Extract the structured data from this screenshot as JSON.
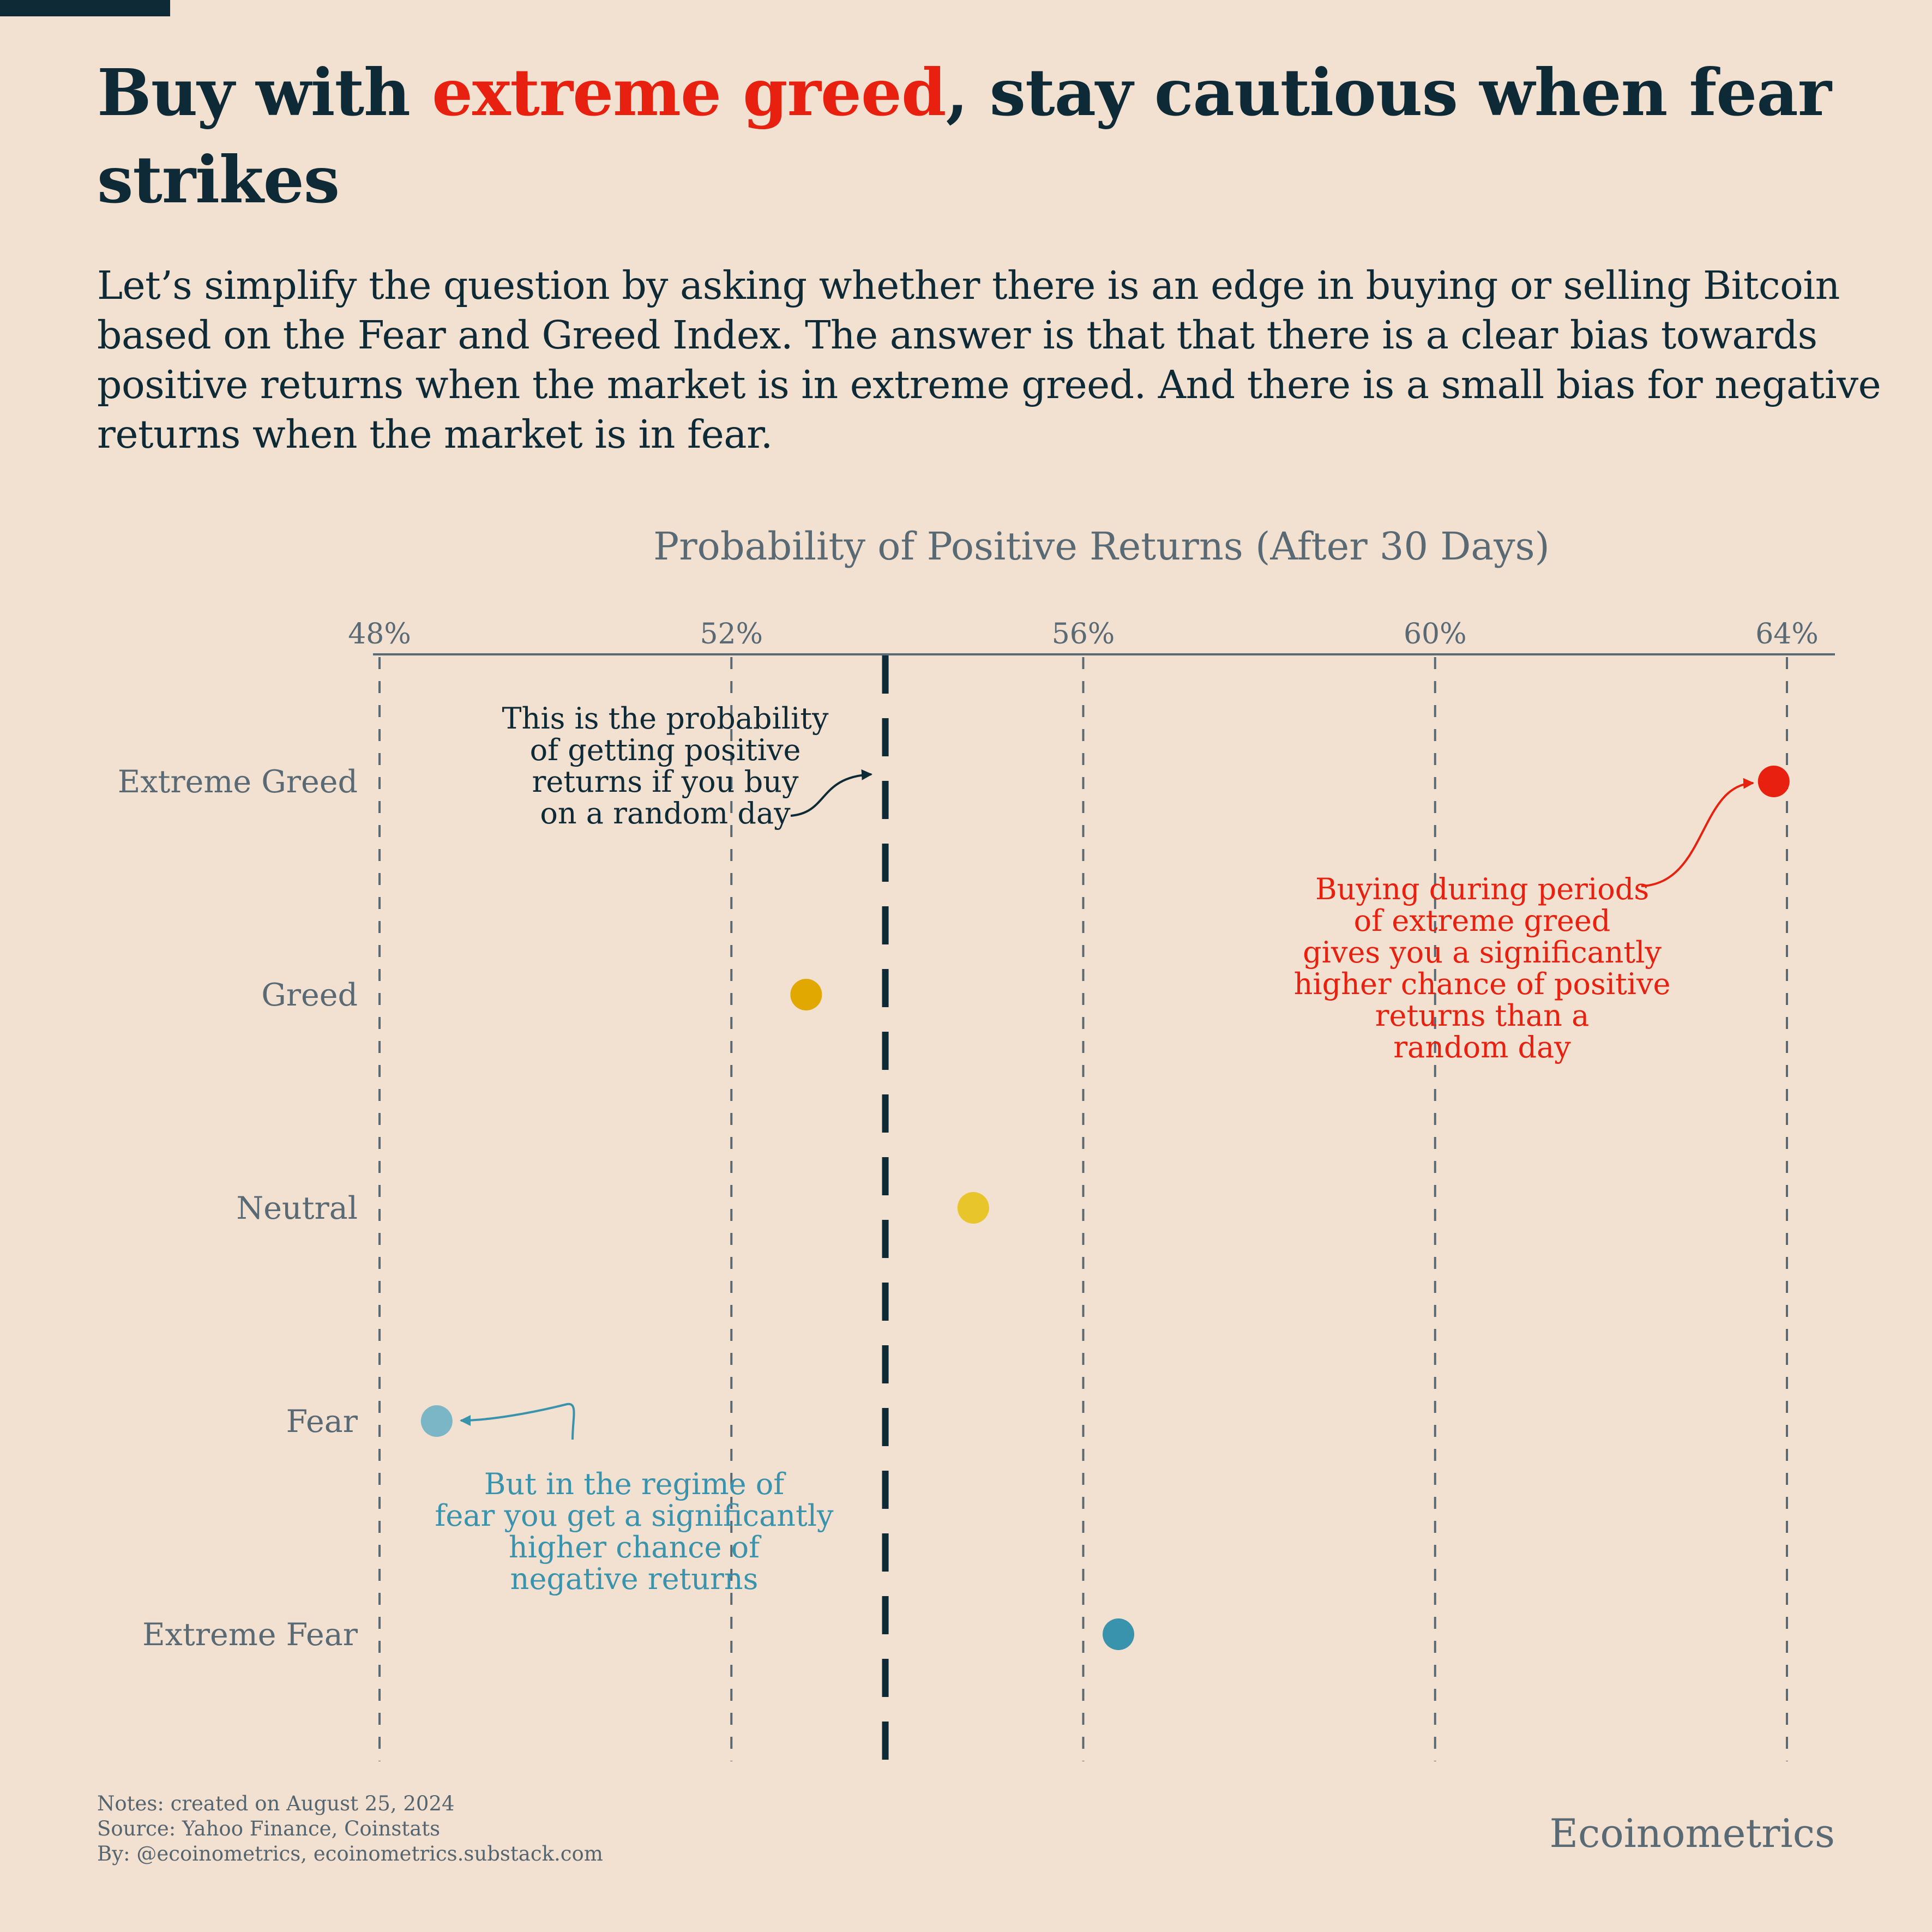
{
  "title": {
    "before": "Buy with ",
    "accent": "extreme greed",
    "after": ", stay cautious when fear strikes"
  },
  "subtitle": "Let’s simplify the question by asking whether there is an edge in buying or selling Bitcoin based on the Fear and Greed Index. The answer is that that there is a clear bias towards positive returns when the market is in extreme greed. And there is a small bias for negative returns when the market is in fear.",
  "colors": {
    "background": "#f2e0d0",
    "title": "#0e2a36",
    "accent": "#e8200f",
    "axis": "#5a6a74"
  },
  "chart_data": {
    "type": "scatter",
    "title": "Probability of Positive Returns (After 30 Days)",
    "x_ticks": [
      48,
      52,
      56,
      60,
      64
    ],
    "x_tick_labels": [
      "48%",
      "52%",
      "56%",
      "60%",
      "64%"
    ],
    "xlim": [
      48,
      64.55
    ],
    "x_axis_position": "top",
    "grid": "vertical dashed",
    "categories": [
      "Extreme Greed",
      "Greed",
      "Neutral",
      "Fear",
      "Extreme Fear"
    ],
    "values": [
      63.85,
      52.85,
      54.75,
      48.65,
      56.4
    ],
    "point_colors": [
      "#e8200f",
      "#e0a800",
      "#e8c52a",
      "#7ab6c6",
      "#3a93ac"
    ],
    "baseline": {
      "value": 53.75,
      "style": "bold dashed"
    },
    "annotations": [
      {
        "text": [
          "This is the probability",
          "of getting positive",
          "returns if you buy",
          "on a random day"
        ],
        "color": "#0e2a36",
        "target": "baseline"
      },
      {
        "text": [
          "Buying during periods",
          "of extreme greed",
          "gives you a significantly",
          "higher chance of positive",
          "returns than a",
          "random day"
        ],
        "color": "#e8200f",
        "target": "Extreme Greed"
      },
      {
        "text": [
          "But in the regime of",
          "fear you get a significantly",
          "higher chance of",
          "negative returns"
        ],
        "color": "#3a93ac",
        "target": "Fear"
      }
    ]
  },
  "footer": {
    "notes": "Notes: created on August 25, 2024",
    "source": "Source: Yahoo Finance, Coinstats",
    "by": "By: @ecoinometrics, ecoinometrics.substack.com",
    "brand": "Ecoinometrics"
  }
}
